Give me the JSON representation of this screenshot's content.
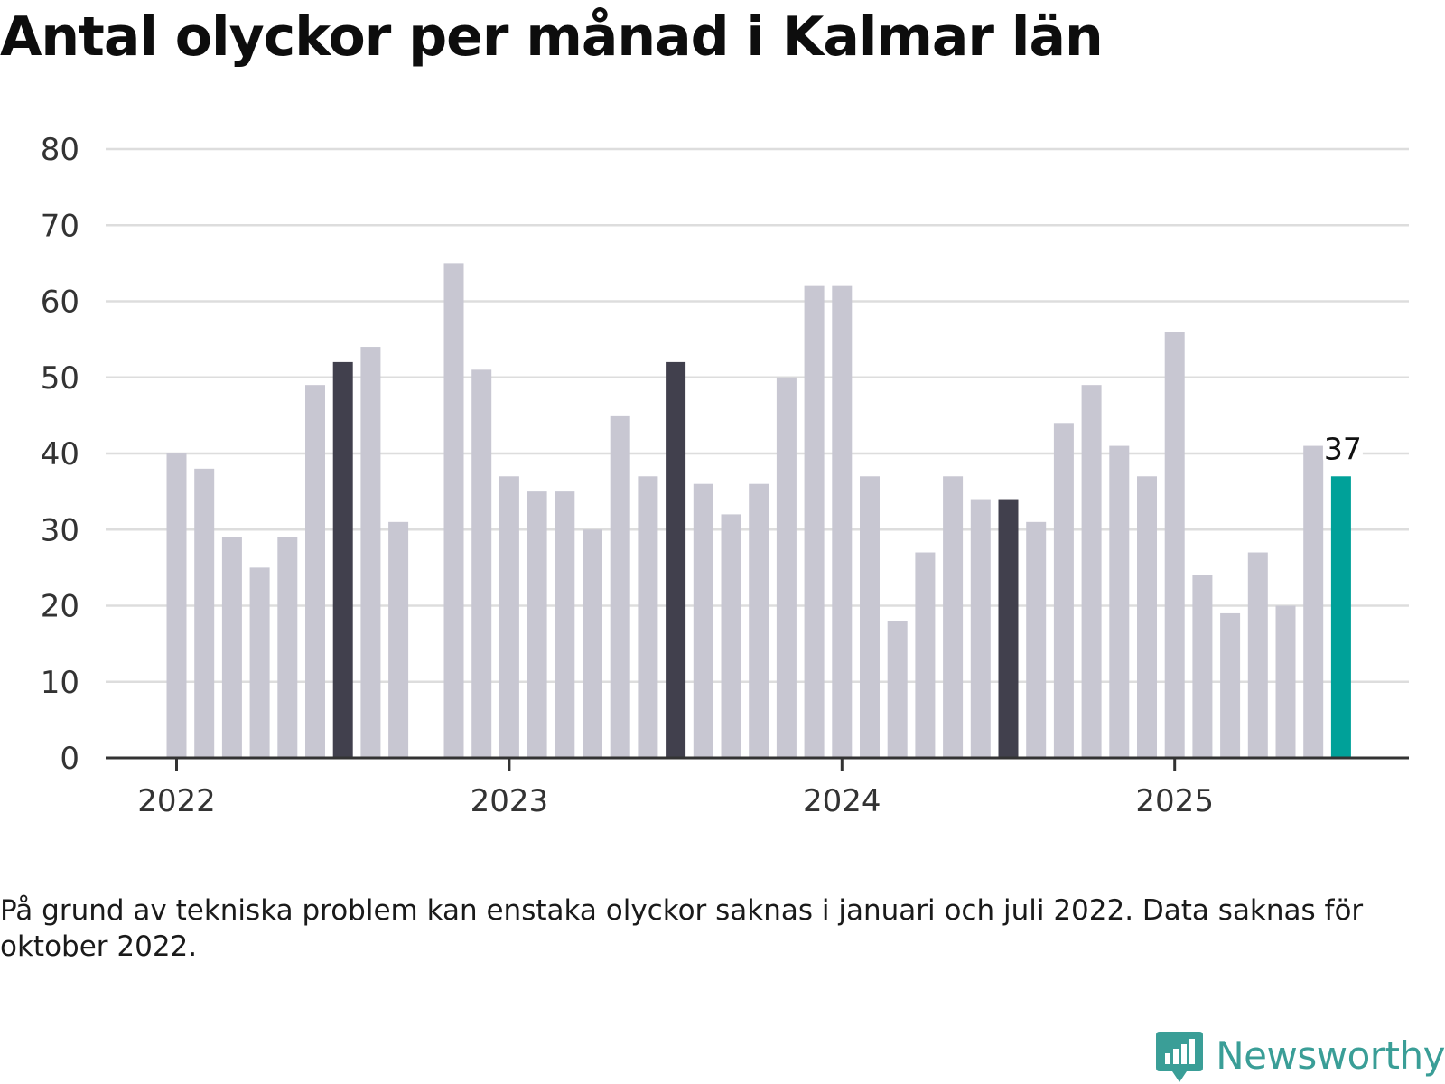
{
  "title": "Antal olyckor per månad i Kalmar län",
  "chart_data": {
    "type": "bar",
    "title": "Antal olyckor per månad i Kalmar län",
    "xlabel": "",
    "ylabel": "",
    "ylim": [
      0,
      80
    ],
    "yticks": [
      0,
      10,
      20,
      30,
      40,
      50,
      60,
      70,
      80
    ],
    "xtick_labels": [
      {
        "label": "2022",
        "date": "2022-01"
      },
      {
        "label": "2023",
        "date": "2023-01"
      },
      {
        "label": "2024",
        "date": "2024-01"
      },
      {
        "label": "2025",
        "date": "2025-01"
      }
    ],
    "grid": true,
    "series": [
      {
        "points": [
          {
            "date": "2022-01",
            "value": 40,
            "color": "#c8c7d2"
          },
          {
            "date": "2022-02",
            "value": 38,
            "color": "#c8c7d2"
          },
          {
            "date": "2022-03",
            "value": 29,
            "color": "#c8c7d2"
          },
          {
            "date": "2022-04",
            "value": 25,
            "color": "#c8c7d2"
          },
          {
            "date": "2022-05",
            "value": 29,
            "color": "#c8c7d2"
          },
          {
            "date": "2022-06",
            "value": 49,
            "color": "#c8c7d2"
          },
          {
            "date": "2022-07",
            "value": 52,
            "color": "#41404d"
          },
          {
            "date": "2022-08",
            "value": 54,
            "color": "#c8c7d2"
          },
          {
            "date": "2022-09",
            "value": 31,
            "color": "#c8c7d2"
          },
          {
            "date": "2022-11",
            "value": 65,
            "color": "#c8c7d2"
          },
          {
            "date": "2022-12",
            "value": 51,
            "color": "#c8c7d2"
          },
          {
            "date": "2023-01",
            "value": 37,
            "color": "#c8c7d2"
          },
          {
            "date": "2023-02",
            "value": 35,
            "color": "#c8c7d2"
          },
          {
            "date": "2023-03",
            "value": 35,
            "color": "#c8c7d2"
          },
          {
            "date": "2023-04",
            "value": 30,
            "color": "#c8c7d2"
          },
          {
            "date": "2023-05",
            "value": 45,
            "color": "#c8c7d2"
          },
          {
            "date": "2023-06",
            "value": 37,
            "color": "#c8c7d2"
          },
          {
            "date": "2023-07",
            "value": 52,
            "color": "#41404d"
          },
          {
            "date": "2023-08",
            "value": 36,
            "color": "#c8c7d2"
          },
          {
            "date": "2023-09",
            "value": 32,
            "color": "#c8c7d2"
          },
          {
            "date": "2023-10",
            "value": 36,
            "color": "#c8c7d2"
          },
          {
            "date": "2023-11",
            "value": 50,
            "color": "#c8c7d2"
          },
          {
            "date": "2023-12",
            "value": 62,
            "color": "#c8c7d2"
          },
          {
            "date": "2024-01",
            "value": 62,
            "color": "#c8c7d2"
          },
          {
            "date": "2024-02",
            "value": 37,
            "color": "#c8c7d2"
          },
          {
            "date": "2024-03",
            "value": 18,
            "color": "#c8c7d2"
          },
          {
            "date": "2024-04",
            "value": 27,
            "color": "#c8c7d2"
          },
          {
            "date": "2024-05",
            "value": 37,
            "color": "#c8c7d2"
          },
          {
            "date": "2024-06",
            "value": 34,
            "color": "#c8c7d2"
          },
          {
            "date": "2024-07",
            "value": 34,
            "color": "#41404d"
          },
          {
            "date": "2024-08",
            "value": 31,
            "color": "#c8c7d2"
          },
          {
            "date": "2024-09",
            "value": 44,
            "color": "#c8c7d2"
          },
          {
            "date": "2024-10",
            "value": 49,
            "color": "#c8c7d2"
          },
          {
            "date": "2024-11",
            "value": 41,
            "color": "#c8c7d2"
          },
          {
            "date": "2024-12",
            "value": 37,
            "color": "#c8c7d2"
          },
          {
            "date": "2025-01",
            "value": 56,
            "color": "#c8c7d2"
          },
          {
            "date": "2025-02",
            "value": 24,
            "color": "#c8c7d2"
          },
          {
            "date": "2025-03",
            "value": 19,
            "color": "#c8c7d2"
          },
          {
            "date": "2025-04",
            "value": 27,
            "color": "#c8c7d2"
          },
          {
            "date": "2025-05",
            "value": 20,
            "color": "#c8c7d2"
          },
          {
            "date": "2025-06",
            "value": 41,
            "color": "#c8c7d2"
          },
          {
            "date": "2025-07",
            "value": 37,
            "color": "#00a199"
          }
        ]
      }
    ],
    "annotation": {
      "date": "2025-07",
      "text": "37"
    },
    "colors": {
      "bar": "#c8c7d2",
      "highlight": "#41404d",
      "latest": "#00a199",
      "grid": "#dddddd",
      "axis": "#333333"
    }
  },
  "footnote": "På grund av tekniska problem kan enstaka olyckor saknas i januari och juli 2022. Data saknas för oktober 2022.",
  "brand": {
    "name": "Newsworthy",
    "icon": "newsworthy-logo-icon",
    "color": "#3a9e97"
  }
}
